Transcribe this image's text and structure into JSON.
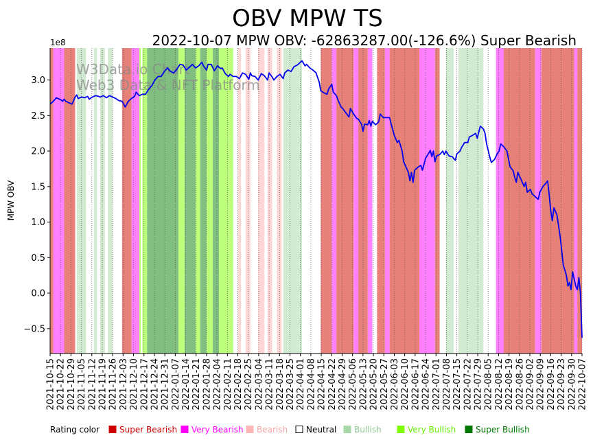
{
  "chart_data": {
    "type": "line",
    "title": "OBV MPW TS",
    "subtitle": "2022-10-07 MPW OBV: -62863287.00(-126.6%) Super Bearish",
    "ylabel": "MPW OBV",
    "xlabel": "",
    "y_offset_label": "1e8",
    "ylim": [
      -0.85,
      3.45
    ],
    "y_ticks": [
      -0.5,
      0.0,
      0.5,
      1.0,
      1.5,
      2.0,
      2.5,
      3.0
    ],
    "y_tick_labels": [
      "−0.5",
      "0.0",
      "0.5",
      "1.0",
      "1.5",
      "2.0",
      "2.5",
      "3.0"
    ],
    "x_tick_labels": [
      "2021-10-15",
      "2021-10-22",
      "2021-10-29",
      "2021-11-05",
      "2021-11-12",
      "2021-11-19",
      "2021-11-26",
      "2021-12-03",
      "2021-12-10",
      "2021-12-17",
      "2021-12-24",
      "2021-12-31",
      "2022-01-07",
      "2022-01-14",
      "2022-01-21",
      "2022-01-28",
      "2022-02-04",
      "2022-02-11",
      "2022-02-18",
      "2022-02-25",
      "2022-03-04",
      "2022-03-11",
      "2022-03-18",
      "2022-03-25",
      "2022-04-01",
      "2022-04-08",
      "2022-04-15",
      "2022-04-22",
      "2022-04-29",
      "2022-05-06",
      "2022-05-13",
      "2022-05-20",
      "2022-05-27",
      "2022-06-03",
      "2022-06-10",
      "2022-06-17",
      "2022-06-24",
      "2022-07-01",
      "2022-07-08",
      "2022-07-15",
      "2022-07-22",
      "2022-07-29",
      "2022-08-05",
      "2022-08-12",
      "2022-08-19",
      "2022-08-26",
      "2022-09-02",
      "2022-09-09",
      "2022-09-16",
      "2022-09-23",
      "2022-09-30",
      "2022-10-07"
    ],
    "x_range_days": [
      0,
      357
    ],
    "series": [
      {
        "name": "MPW OBV",
        "color": "#0000ee",
        "points": [
          [
            0,
            2.66
          ],
          [
            2,
            2.7
          ],
          [
            4,
            2.75
          ],
          [
            6,
            2.73
          ],
          [
            7,
            2.72
          ],
          [
            8,
            2.7
          ],
          [
            9,
            2.73
          ],
          [
            10,
            2.7
          ],
          [
            12,
            2.68
          ],
          [
            14,
            2.66
          ],
          [
            16,
            2.76
          ],
          [
            17,
            2.79
          ],
          [
            18,
            2.74
          ],
          [
            20,
            2.76
          ],
          [
            22,
            2.75
          ],
          [
            24,
            2.77
          ],
          [
            25,
            2.73
          ],
          [
            27,
            2.76
          ],
          [
            29,
            2.78
          ],
          [
            31,
            2.77
          ],
          [
            32,
            2.76
          ],
          [
            34,
            2.78
          ],
          [
            36,
            2.75
          ],
          [
            38,
            2.78
          ],
          [
            40,
            2.76
          ],
          [
            42,
            2.74
          ],
          [
            44,
            2.71
          ],
          [
            46,
            2.7
          ],
          [
            48,
            2.62
          ],
          [
            50,
            2.7
          ],
          [
            52,
            2.74
          ],
          [
            54,
            2.77
          ],
          [
            55,
            2.83
          ],
          [
            57,
            2.78
          ],
          [
            59,
            2.8
          ],
          [
            61,
            2.8
          ],
          [
            63,
            2.87
          ],
          [
            65,
            2.92
          ],
          [
            67,
            3.0
          ],
          [
            69,
            3.05
          ],
          [
            71,
            3.05
          ],
          [
            73,
            3.12
          ],
          [
            75,
            3.17
          ],
          [
            77,
            3.12
          ],
          [
            79,
            3.1
          ],
          [
            81,
            3.15
          ],
          [
            83,
            3.22
          ],
          [
            85,
            3.21
          ],
          [
            87,
            3.14
          ],
          [
            89,
            3.18
          ],
          [
            91,
            3.22
          ],
          [
            93,
            3.17
          ],
          [
            95,
            3.2
          ],
          [
            97,
            3.25
          ],
          [
            98,
            3.2
          ],
          [
            100,
            3.14
          ],
          [
            101,
            3.22
          ],
          [
            103,
            3.22
          ],
          [
            105,
            3.13
          ],
          [
            107,
            3.2
          ],
          [
            109,
            3.16
          ],
          [
            110,
            3.17
          ],
          [
            112,
            3.09
          ],
          [
            114,
            3.05
          ],
          [
            115,
            3.08
          ],
          [
            117,
            3.05
          ],
          [
            119,
            3.05
          ],
          [
            121,
            3.02
          ],
          [
            123,
            3.1
          ],
          [
            125,
            3.08
          ],
          [
            127,
            3.01
          ],
          [
            128,
            3.1
          ],
          [
            129,
            3.06
          ],
          [
            131,
            3.05
          ],
          [
            133,
            3.0
          ],
          [
            135,
            3.09
          ],
          [
            137,
            3.06
          ],
          [
            139,
            3.0
          ],
          [
            140,
            3.1
          ],
          [
            142,
            3.04
          ],
          [
            143,
            3.0
          ],
          [
            145,
            3.05
          ],
          [
            147,
            3.08
          ],
          [
            149,
            3.02
          ],
          [
            150,
            3.1
          ],
          [
            152,
            3.14
          ],
          [
            154,
            3.12
          ],
          [
            156,
            3.19
          ],
          [
            158,
            3.21
          ],
          [
            160,
            3.25
          ],
          [
            161,
            3.27
          ],
          [
            163,
            3.2
          ],
          [
            164,
            3.22
          ],
          [
            166,
            3.17
          ],
          [
            168,
            3.14
          ],
          [
            170,
            3.1
          ],
          [
            172,
            2.97
          ],
          [
            173,
            2.85
          ],
          [
            175,
            2.82
          ],
          [
            177,
            2.8
          ],
          [
            178,
            2.87
          ],
          [
            180,
            2.94
          ],
          [
            181,
            2.83
          ],
          [
            183,
            2.78
          ],
          [
            184,
            2.72
          ],
          [
            186,
            2.62
          ],
          [
            187,
            2.6
          ],
          [
            189,
            2.54
          ],
          [
            191,
            2.48
          ],
          [
            192,
            2.6
          ],
          [
            194,
            2.52
          ],
          [
            196,
            2.46
          ],
          [
            197,
            2.45
          ],
          [
            199,
            2.38
          ],
          [
            200,
            2.28
          ],
          [
            201,
            2.38
          ],
          [
            203,
            2.37
          ],
          [
            204,
            2.43
          ],
          [
            205,
            2.35
          ],
          [
            206,
            2.42
          ],
          [
            208,
            2.37
          ],
          [
            210,
            2.41
          ],
          [
            211,
            2.52
          ],
          [
            213,
            2.47
          ],
          [
            215,
            2.47
          ],
          [
            217,
            2.47
          ],
          [
            218,
            2.38
          ],
          [
            220,
            2.22
          ],
          [
            222,
            2.12
          ],
          [
            223,
            2.15
          ],
          [
            225,
            2.0
          ],
          [
            226,
            1.85
          ],
          [
            228,
            1.75
          ],
          [
            229,
            1.7
          ],
          [
            230,
            1.58
          ],
          [
            231,
            1.7
          ],
          [
            232,
            1.56
          ],
          [
            233,
            1.73
          ],
          [
            235,
            1.77
          ],
          [
            237,
            1.8
          ],
          [
            238,
            1.73
          ],
          [
            240,
            1.9
          ],
          [
            242,
            1.97
          ],
          [
            243,
            2.01
          ],
          [
            244,
            1.92
          ],
          [
            245,
            2.0
          ],
          [
            246,
            1.85
          ],
          [
            247,
            1.93
          ],
          [
            249,
            1.95
          ],
          [
            251,
            2.0
          ],
          [
            252,
            1.95
          ],
          [
            253,
            2.0
          ],
          [
            255,
            1.93
          ],
          [
            257,
            1.92
          ],
          [
            259,
            1.87
          ],
          [
            260,
            1.96
          ],
          [
            262,
            2.0
          ],
          [
            263,
            2.05
          ],
          [
            265,
            2.12
          ],
          [
            267,
            2.12
          ],
          [
            268,
            2.2
          ],
          [
            270,
            2.22
          ],
          [
            272,
            2.25
          ],
          [
            273,
            2.18
          ],
          [
            275,
            2.35
          ],
          [
            277,
            2.31
          ],
          [
            278,
            2.25
          ],
          [
            279,
            2.1
          ],
          [
            281,
            1.92
          ],
          [
            282,
            1.84
          ],
          [
            284,
            1.88
          ],
          [
            286,
            1.97
          ],
          [
            287,
            2.0
          ],
          [
            288,
            2.1
          ],
          [
            290,
            2.06
          ],
          [
            292,
            2.0
          ],
          [
            294,
            1.78
          ],
          [
            296,
            1.72
          ],
          [
            297,
            1.63
          ],
          [
            298,
            1.56
          ],
          [
            299,
            1.7
          ],
          [
            301,
            1.6
          ],
          [
            303,
            1.5
          ],
          [
            304,
            1.56
          ],
          [
            305,
            1.42
          ],
          [
            307,
            1.46
          ],
          [
            308,
            1.4
          ],
          [
            310,
            1.36
          ],
          [
            312,
            1.32
          ],
          [
            313,
            1.42
          ],
          [
            315,
            1.5
          ],
          [
            317,
            1.55
          ],
          [
            318,
            1.58
          ],
          [
            319,
            1.39
          ],
          [
            320,
            1.16
          ],
          [
            321,
            1.02
          ],
          [
            322,
            1.2
          ],
          [
            323,
            1.15
          ],
          [
            324,
            1.1
          ],
          [
            326,
            0.8
          ],
          [
            327,
            0.6
          ],
          [
            328,
            0.4
          ],
          [
            330,
            0.25
          ],
          [
            331,
            0.1
          ],
          [
            332,
            0.15
          ],
          [
            333,
            0.05
          ],
          [
            334,
            0.3
          ],
          [
            335,
            0.2
          ],
          [
            336,
            0.1
          ],
          [
            337,
            0.05
          ],
          [
            338,
            0.22
          ],
          [
            339,
            0.0
          ],
          [
            340,
            -0.63
          ]
        ]
      }
    ],
    "rating_bands": [
      [
        "sb",
        0,
        2
      ],
      [
        "vb",
        2,
        9
      ],
      [
        "sb",
        9,
        16
      ],
      [
        "bl",
        17,
        23
      ],
      [
        "ne",
        23,
        25
      ],
      [
        "bl",
        28,
        30
      ],
      [
        "ne",
        30,
        32
      ],
      [
        "bl",
        32,
        35
      ],
      [
        "ne",
        35,
        37
      ],
      [
        "bl",
        37,
        40
      ],
      [
        "ne",
        40,
        43
      ],
      [
        "sb",
        46,
        52
      ],
      [
        "vb",
        52,
        57
      ],
      [
        "vbl",
        57,
        58
      ],
      [
        "vbl",
        59,
        62
      ],
      [
        "sbl",
        62,
        82
      ],
      [
        "vbl",
        82,
        86
      ],
      [
        "sbl",
        86,
        93
      ],
      [
        "vbl",
        93,
        96
      ],
      [
        "sbl",
        96,
        100
      ],
      [
        "vbl",
        100,
        104
      ],
      [
        "sbl",
        104,
        108
      ],
      [
        "vbl",
        108,
        117
      ],
      [
        "ne",
        117,
        120
      ],
      [
        "be",
        120,
        122
      ],
      [
        "ne",
        122,
        125
      ],
      [
        "be",
        125,
        128
      ],
      [
        "ne",
        128,
        133
      ],
      [
        "be",
        133,
        137
      ],
      [
        "ne",
        137,
        139
      ],
      [
        "be",
        139,
        142
      ],
      [
        "ne",
        142,
        145
      ],
      [
        "be",
        145,
        148
      ],
      [
        "bl",
        149,
        161
      ],
      [
        "ne",
        161,
        171
      ],
      [
        "sb",
        173,
        180
      ],
      [
        "vb",
        180,
        183
      ],
      [
        "sb",
        183,
        194
      ],
      [
        "vb",
        194,
        197
      ],
      [
        "sb",
        197,
        203
      ],
      [
        "vb",
        203,
        206
      ],
      [
        "ne",
        206,
        209
      ],
      [
        "sb",
        209,
        214
      ],
      [
        "vb",
        214,
        217
      ],
      [
        "sb",
        217,
        236
      ],
      [
        "vb",
        236,
        246
      ],
      [
        "sb",
        246,
        249
      ],
      [
        "ne",
        249,
        253
      ],
      [
        "bl",
        253,
        258
      ],
      [
        "ne",
        258,
        261
      ],
      [
        "bl",
        261,
        277
      ],
      [
        "ne",
        277,
        284
      ],
      [
        "vb",
        285,
        290
      ],
      [
        "sb",
        290,
        310
      ],
      [
        "vb",
        310,
        314
      ],
      [
        "sb",
        314,
        335
      ],
      [
        "vb",
        335,
        337
      ],
      [
        "sb",
        337,
        340
      ]
    ],
    "legend_title": "Rating color",
    "legend": [
      {
        "label": "Super Bearish",
        "color": "#cc0000",
        "text_color": "#cc0000"
      },
      {
        "label": "Very Bearish",
        "color": "#ff00ff",
        "text_color": "#ff00ff"
      },
      {
        "label": "Bearish",
        "color": "#ffb6b6",
        "text_color": "#f4a5a5"
      },
      {
        "label": "Neutral",
        "color": "#ffffff",
        "text_color": "#000000"
      },
      {
        "label": "Bullish",
        "color": "#a8d8a8",
        "text_color": "#90c890"
      },
      {
        "label": "Very Bullish",
        "color": "#80ff00",
        "text_color": "#66ee00"
      },
      {
        "label": "Super Bullish",
        "color": "#007700",
        "text_color": "#007700"
      }
    ],
    "band_colors": {
      "sb": "#e8807a",
      "vb": "#ff80ff",
      "be": "#ffd6d6",
      "ne": "#ffffff",
      "bl": "#d2e9d2",
      "vbl": "#bcff7a",
      "sbl": "#80bf80"
    },
    "watermark": [
      "W3Data.io Chart",
      "Web3 Data & NFT Platform"
    ]
  }
}
